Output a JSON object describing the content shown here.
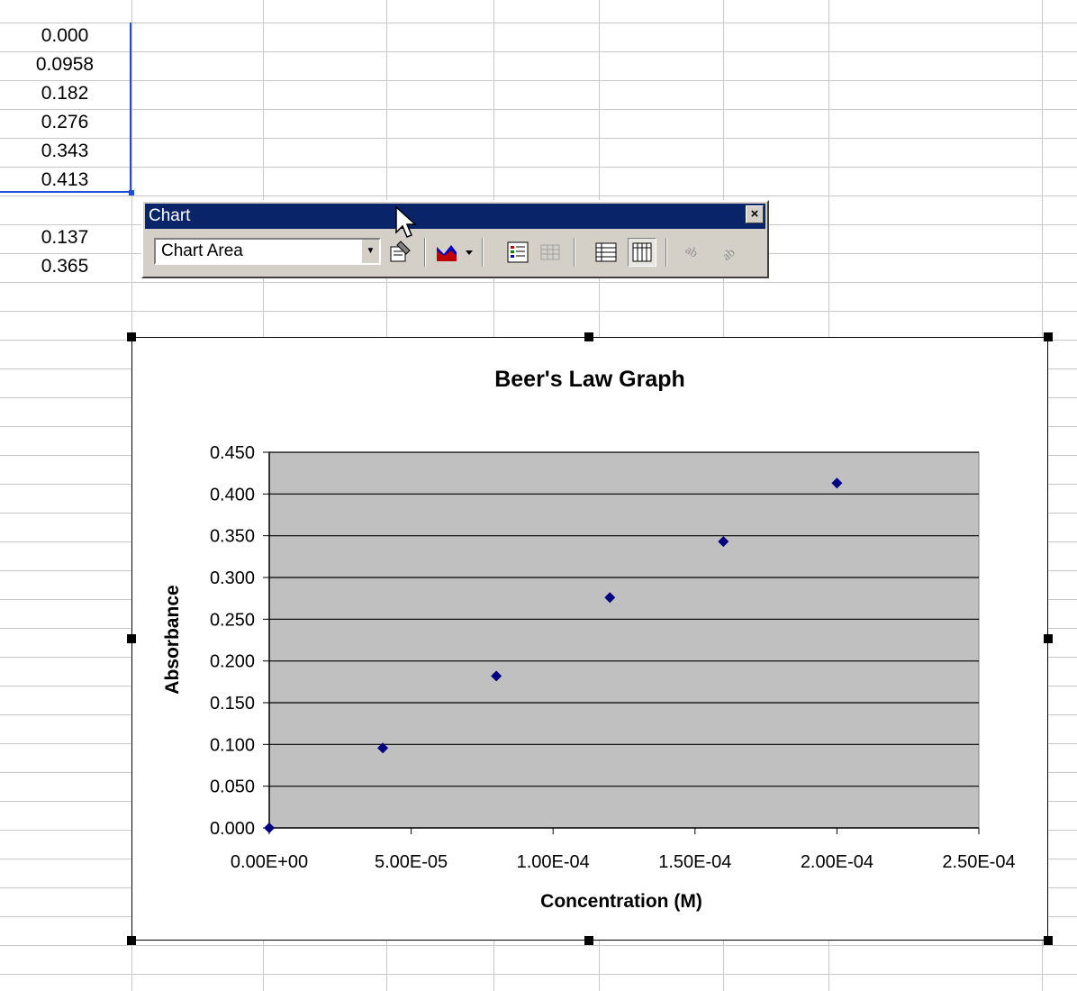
{
  "spreadsheet": {
    "cells": [
      "0.000",
      "0.0958",
      "0.182",
      "0.276",
      "0.343",
      "0.413",
      "",
      "0.137",
      "0.365"
    ]
  },
  "toolbar": {
    "title": "Chart",
    "close_symbol": "×",
    "chart_objects_selected": "Chart Area",
    "buttons": [
      {
        "name": "format-chart-area-icon"
      },
      {
        "name": "chart-type-icon"
      },
      {
        "name": "legend-icon"
      },
      {
        "name": "data-table-icon"
      },
      {
        "name": "by-row-icon"
      },
      {
        "name": "by-column-icon"
      },
      {
        "name": "angle-text-downward-icon"
      },
      {
        "name": "angle-text-upward-icon"
      }
    ]
  },
  "colors": {
    "plot_area": "#c0c0c0",
    "marker": "#000080",
    "selection": "#1c4fd6",
    "title_bar": "#0a246a"
  },
  "chart_data": {
    "type": "scatter",
    "title": "Beer's Law Graph",
    "xlabel": "Concentration (M)",
    "ylabel": "Absorbance",
    "xlim": [
      0,
      0.00025
    ],
    "ylim": [
      0,
      0.45
    ],
    "xticks": [
      "0.00E+00",
      "5.00E-05",
      "1.00E-04",
      "1.50E-04",
      "2.00E-04",
      "2.50E-04"
    ],
    "yticks": [
      "0.000",
      "0.050",
      "0.100",
      "0.150",
      "0.200",
      "0.250",
      "0.300",
      "0.350",
      "0.400",
      "0.450"
    ],
    "grid": "horizontal",
    "legend": "none",
    "series": [
      {
        "x": [
          0,
          4e-05,
          8e-05,
          0.00012,
          0.00016,
          0.0002
        ],
        "y": [
          0.0,
          0.0958,
          0.182,
          0.276,
          0.343,
          0.413
        ]
      }
    ]
  }
}
